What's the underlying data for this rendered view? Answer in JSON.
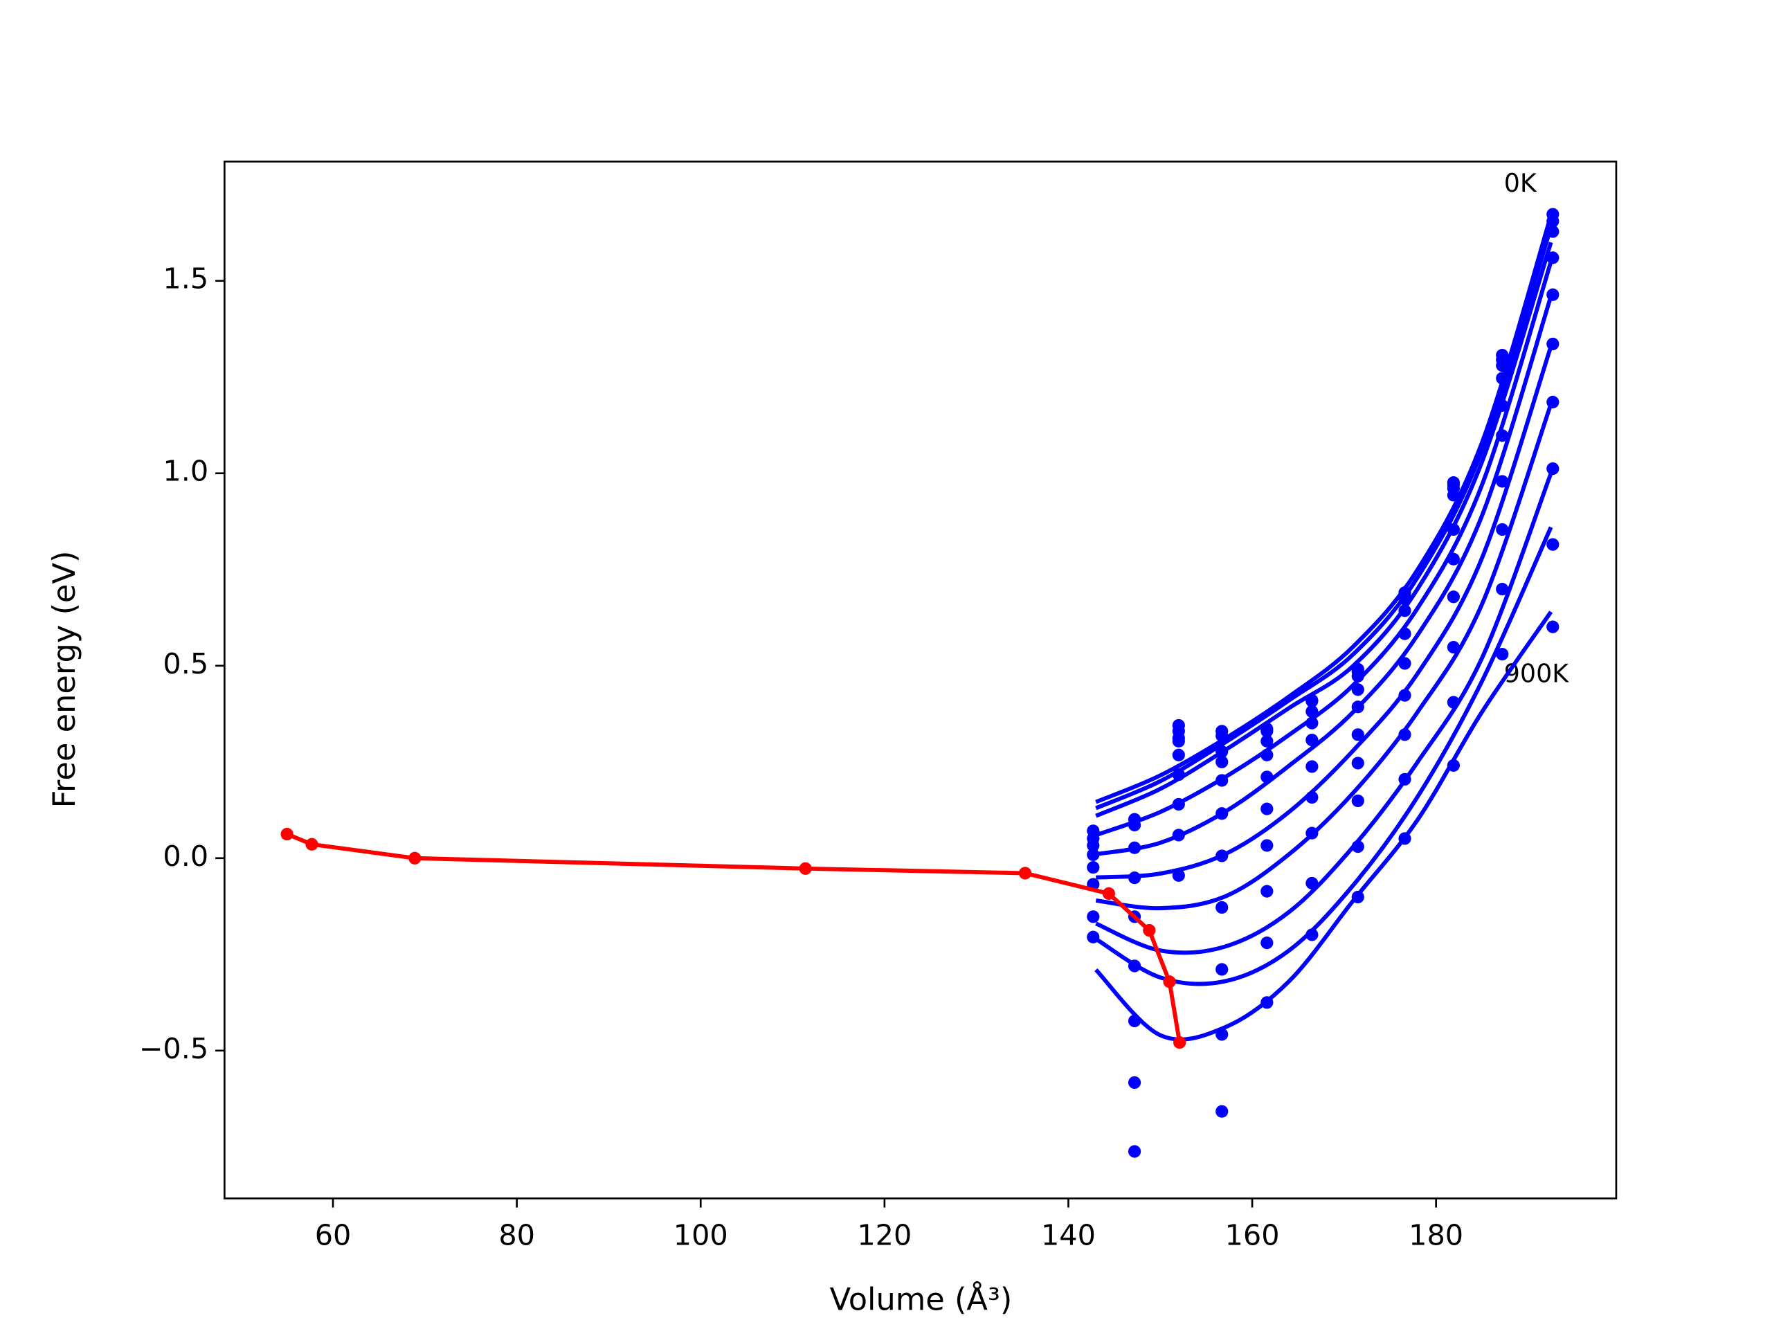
{
  "chart_data": {
    "type": "line",
    "x_label": "Volume (Å³)",
    "y_label": "Free energy (eV)",
    "annotations": [
      "0K",
      "900K"
    ],
    "xlim": [
      48.2,
      199.6
    ],
    "ylim": [
      -0.884,
      1.81
    ],
    "xticks": [
      60,
      80,
      100,
      120,
      140,
      160,
      180
    ],
    "yticks": [
      {
        "value": -0.5,
        "label": "−0.5"
      },
      {
        "value": 0,
        "label": "0.0"
      },
      0.5,
      {
        "value": 1,
        "label": "1.0"
      },
      1.5
    ],
    "series": [
      {
        "type": "line",
        "color": "#0000ff",
        "x": [
          143,
          150,
          157,
          164,
          171,
          178,
          185,
          192.5
        ],
        "values": [
          0.146,
          0.215,
          0.31,
          0.42,
          0.55,
          0.75,
          1.08,
          1.67
        ]
      },
      {
        "type": "line",
        "color": "#0000ff",
        "x": [
          143,
          150,
          157,
          164,
          171,
          178,
          185,
          192.5
        ],
        "values": [
          0.13,
          0.2,
          0.3,
          0.41,
          0.53,
          0.73,
          1.06,
          1.64
        ]
      },
      {
        "type": "line",
        "color": "#0000ff",
        "x": [
          143,
          150,
          157,
          164,
          171,
          178,
          185,
          192.5
        ],
        "values": [
          0.11,
          0.18,
          0.28,
          0.39,
          0.5,
          0.7,
          1.03,
          1.6
        ]
      },
      {
        "type": "line",
        "color": "#0000ff",
        "x": [
          143,
          150,
          157,
          164,
          171,
          178,
          185,
          192.5
        ],
        "values": [
          0.06,
          0.12,
          0.21,
          0.32,
          0.45,
          0.65,
          0.97,
          1.55
        ]
      },
      {
        "type": "line",
        "color": "#0000ff",
        "x": [
          143,
          150,
          157,
          164,
          171,
          178,
          185,
          192.5
        ],
        "values": [
          0.01,
          0.04,
          0.12,
          0.24,
          0.38,
          0.58,
          0.89,
          1.46
        ]
      },
      {
        "type": "line",
        "color": "#0000ff",
        "x": [
          143,
          150,
          157,
          164,
          171,
          178,
          185,
          192.5
        ],
        "values": [
          -0.05,
          -0.04,
          0.01,
          0.12,
          0.28,
          0.48,
          0.78,
          1.33
        ]
      },
      {
        "type": "line",
        "color": "#0000ff",
        "x": [
          143,
          150,
          157,
          164,
          171,
          178,
          185,
          192.5
        ],
        "values": [
          -0.11,
          -0.13,
          -0.1,
          0.01,
          0.17,
          0.38,
          0.66,
          1.18
        ]
      },
      {
        "type": "line",
        "color": "#0000ff",
        "x": [
          143,
          150,
          157,
          164,
          171,
          178,
          185,
          192.5
        ],
        "values": [
          -0.17,
          -0.24,
          -0.23,
          -0.14,
          0.03,
          0.25,
          0.52,
          1.0
        ]
      },
      {
        "type": "line",
        "color": "#0000ff",
        "x": [
          143,
          150,
          157,
          164,
          171,
          178,
          185,
          192.5
        ],
        "values": [
          -0.21,
          -0.31,
          -0.32,
          -0.24,
          -0.07,
          0.16,
          0.46,
          0.86
        ]
      },
      {
        "type": "line",
        "color": "#0000ff",
        "x": [
          143,
          150,
          157,
          164,
          171,
          178,
          185,
          192.5
        ],
        "values": [
          -0.29,
          -0.46,
          -0.44,
          -0.32,
          -0.11,
          0.1,
          0.38,
          0.64
        ]
      },
      {
        "type": "scatter",
        "color": "#0000ff",
        "x": [
          142.7,
          142.7,
          142.7,
          142.7,
          142.7,
          142.7,
          142.7,
          142.7,
          147.2,
          147.2,
          147.2,
          147.2,
          147.2,
          147.2,
          147.2,
          147.2,
          147.2,
          152.0,
          152.0,
          152.0,
          152.0,
          152.0,
          152.0,
          152.0,
          152.0,
          152.0,
          156.7,
          156.7,
          156.7,
          156.7,
          156.7,
          156.7,
          156.7,
          156.7,
          156.7,
          156.7,
          156.7,
          161.6,
          161.6,
          161.6,
          161.6,
          161.6,
          161.6,
          161.6,
          161.6,
          161.6,
          161.6,
          166.5,
          166.5,
          166.5,
          166.5,
          166.5,
          166.5,
          166.5,
          166.5,
          166.5,
          166.5,
          171.5,
          171.5,
          171.5,
          171.5,
          171.5,
          171.5,
          171.5,
          171.5,
          171.5,
          171.5,
          176.6,
          176.6,
          176.6,
          176.6,
          176.6,
          176.6,
          176.6,
          176.6,
          176.6,
          176.6,
          181.9,
          181.9,
          181.9,
          181.9,
          181.9,
          181.9,
          181.9,
          181.9,
          181.9,
          181.9,
          187.2,
          187.2,
          187.2,
          187.2,
          187.2,
          187.2,
          187.2,
          187.2,
          187.2,
          187.2,
          192.7,
          192.7,
          192.7,
          192.7,
          192.7,
          192.7,
          192.7,
          192.7,
          192.7,
          192.7
        ],
        "values": [
          0.071,
          0.051,
          0.033,
          0.009,
          -0.024,
          -0.068,
          -0.152,
          -0.205,
          0.101,
          0.086,
          0.027,
          -0.051,
          -0.152,
          -0.28,
          -0.423,
          -0.583,
          -0.762,
          0.345,
          0.33,
          0.312,
          0.304,
          0.268,
          0.217,
          0.14,
          0.06,
          -0.045,
          0.33,
          0.318,
          0.277,
          0.25,
          0.202,
          0.116,
          0.006,
          -0.128,
          -0.289,
          -0.458,
          -0.658,
          0.336,
          0.33,
          0.304,
          0.268,
          0.211,
          0.128,
          0.033,
          -0.086,
          -0.22,
          -0.375,
          0.41,
          0.408,
          0.381,
          0.351,
          0.307,
          0.238,
          0.158,
          0.065,
          -0.065,
          -0.199,
          0.491,
          0.485,
          0.473,
          0.438,
          0.393,
          0.321,
          0.247,
          0.149,
          0.03,
          -0.101,
          0.69,
          0.688,
          0.673,
          0.643,
          0.583,
          0.506,
          0.423,
          0.321,
          0.205,
          0.051,
          0.976,
          0.97,
          0.961,
          0.943,
          0.854,
          0.777,
          0.679,
          0.548,
          0.405,
          0.241,
          1.307,
          1.295,
          1.28,
          1.247,
          1.176,
          1.098,
          0.979,
          0.854,
          0.699,
          0.53,
          1.673,
          1.655,
          1.628,
          1.56,
          1.464,
          1.336,
          1.185,
          1.012,
          0.815,
          0.601
        ]
      },
      {
        "type": "line",
        "color": "#ff0000",
        "markers": true,
        "x": [
          55.0,
          57.7,
          68.9,
          111.4,
          135.3,
          144.4,
          148.8,
          151.0,
          152.1
        ],
        "values": [
          0.0625,
          0.036,
          0.0,
          -0.027,
          -0.039,
          -0.092,
          -0.1875,
          -0.321,
          -0.479
        ]
      }
    ]
  }
}
